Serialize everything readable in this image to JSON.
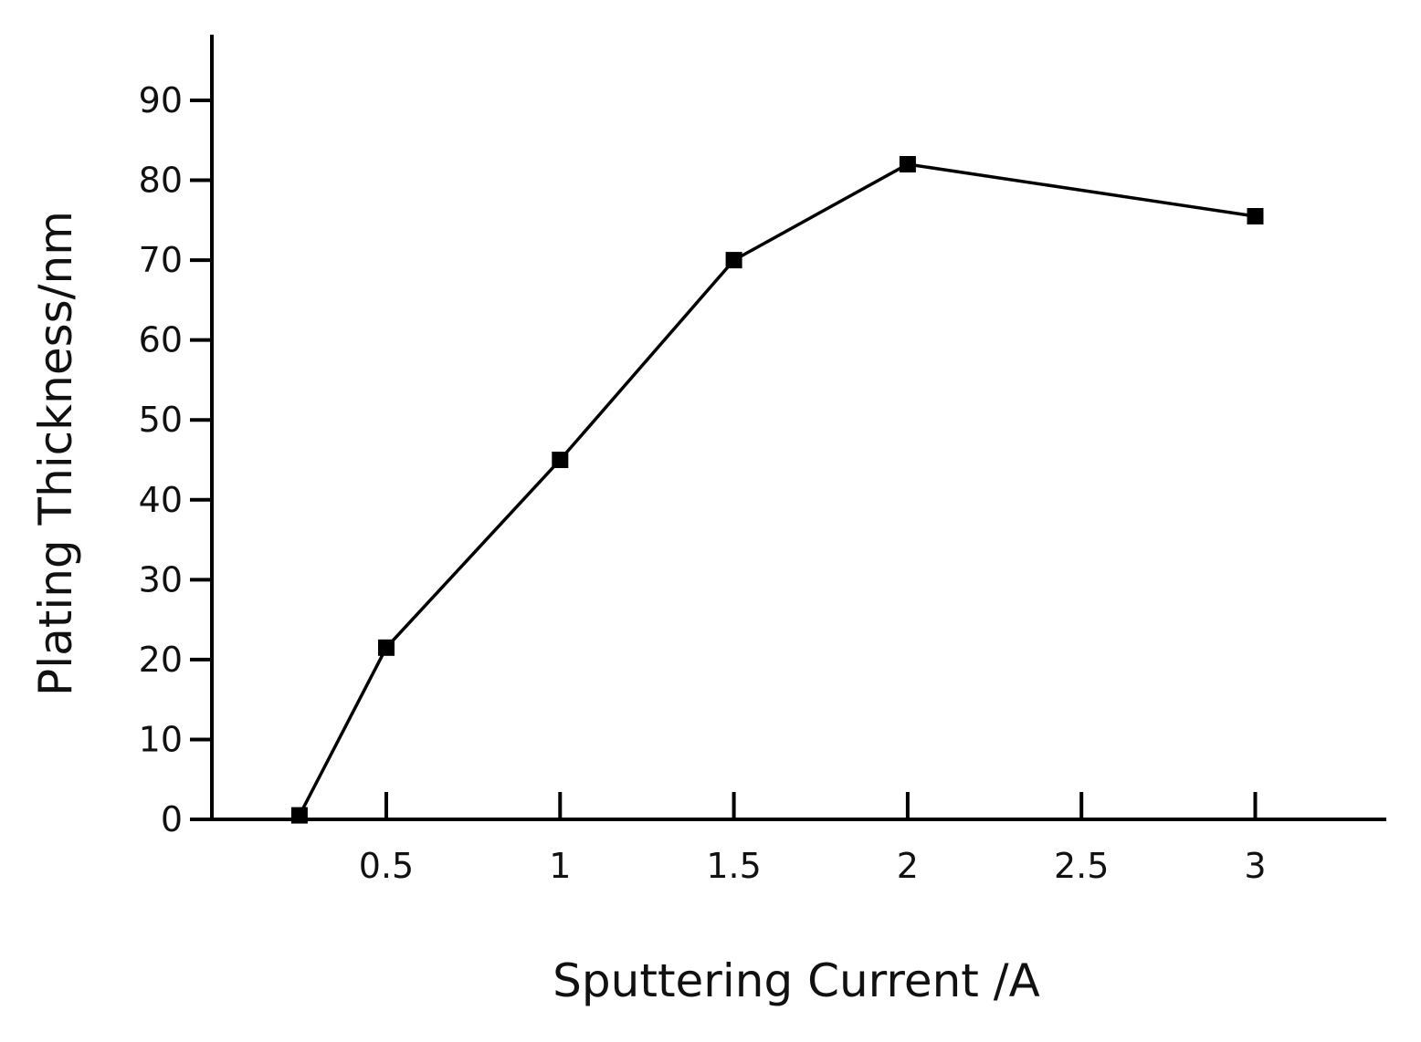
{
  "chart_data": {
    "type": "line",
    "title": "",
    "xlabel": "Sputtering Current /A",
    "ylabel": "Plating Thickness/nm",
    "xlim": [
      0,
      3.4
    ],
    "ylim": [
      0,
      90
    ],
    "x_ticks": [
      0.5,
      1,
      1.5,
      2,
      2.5,
      3
    ],
    "x_tick_labels": [
      "0.5",
      "1",
      "1.5",
      "2",
      "2.5",
      "3"
    ],
    "y_ticks": [
      0,
      10,
      20,
      30,
      40,
      50,
      60,
      70,
      80,
      90
    ],
    "y_tick_labels": [
      "0",
      "10",
      "20",
      "30",
      "40",
      "50",
      "60",
      "70",
      "80",
      "90"
    ],
    "grid": false,
    "series": [
      {
        "x": [
          0.25,
          0.5,
          1,
          1.5,
          2,
          3
        ],
        "values": [
          0.5,
          21.5,
          45,
          70,
          82,
          75.5
        ],
        "marker": "square",
        "color": "#000000"
      }
    ]
  }
}
